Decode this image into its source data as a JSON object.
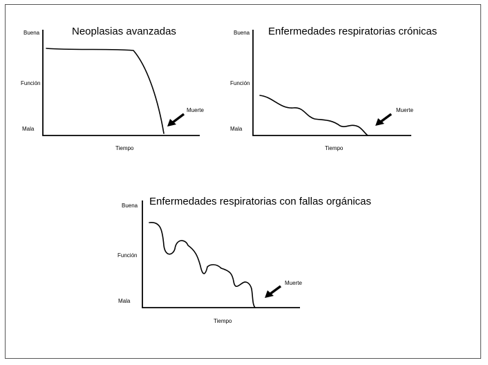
{
  "panels": [
    {
      "title": "Neoplasias avanzadas",
      "y_labels": {
        "top": "Buena",
        "mid": "Función",
        "bottom": "Mala"
      },
      "x_label": "Tiempo",
      "death_label": "Muerte"
    },
    {
      "title": "Enfermedades respiratorias crónicas",
      "y_labels": {
        "top": "Buena",
        "mid": "Función",
        "bottom": "Mala"
      },
      "x_label": "Tiempo",
      "death_label": "Muerte"
    },
    {
      "title": "Enfermedades respiratorias con fallas orgánicas",
      "y_labels": {
        "top": "Buena",
        "mid": "Función",
        "bottom": "Mala"
      },
      "x_label": "Tiempo",
      "death_label": "Muerte"
    }
  ],
  "colors": {
    "line": "#000000",
    "frame": "#555555",
    "background": "#ffffff"
  }
}
